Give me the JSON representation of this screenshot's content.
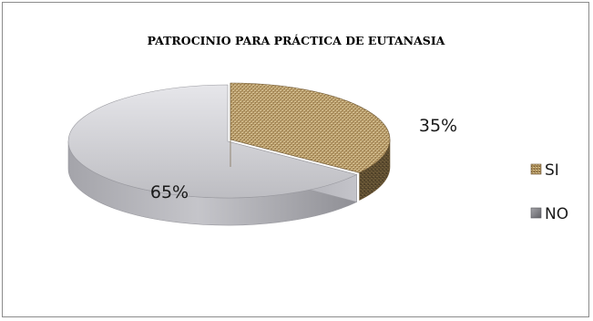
{
  "chart_data": {
    "type": "pie",
    "title": "PATROCINIO PARA PRÁCTICA DE EUTANASIA",
    "categories": [
      "SI",
      "NO"
    ],
    "values": [
      35,
      65
    ],
    "data_labels": [
      "35%",
      "65%"
    ],
    "colors": [
      "#b79a66",
      "#c8c8cc"
    ],
    "exploded": true,
    "style": "3d",
    "legend_position": "right"
  }
}
